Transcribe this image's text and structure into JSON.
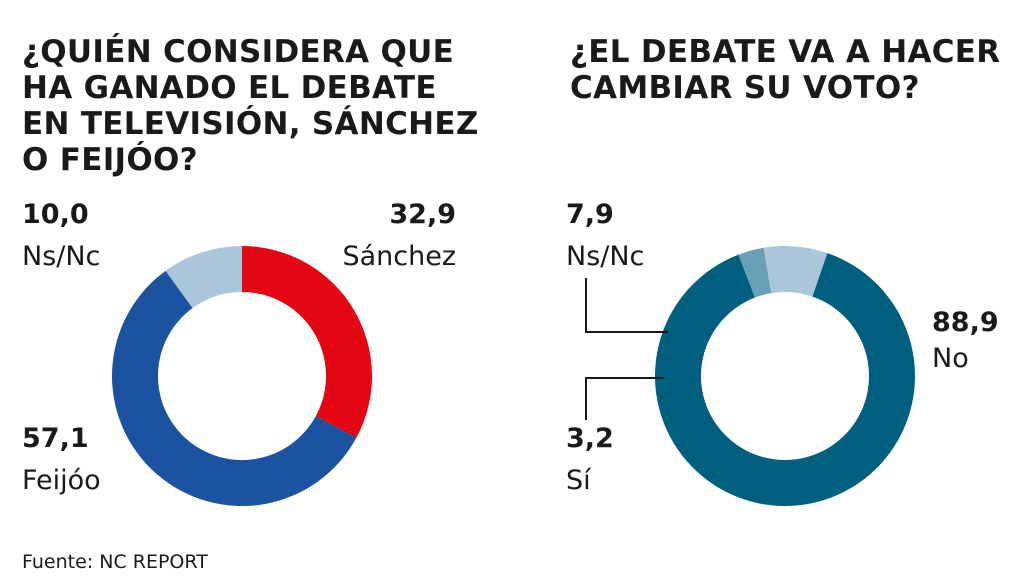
{
  "chart_data": [
    {
      "type": "pie",
      "title": "¿QUIÉN CONSIDERA QUE\nHA GANADO EL DEBATE\nEN TELEVISIÓN, SÁNCHEZ\nO FEIJÓO?",
      "slices": [
        {
          "label": "Sánchez",
          "value": 32.9,
          "value_text": "32,9",
          "color": "#e30613"
        },
        {
          "label": "Feijóo",
          "value": 57.1,
          "value_text": "57,1",
          "color": "#1c53a0"
        },
        {
          "label": "Ns/Nc",
          "value": 10.0,
          "value_text": "10,0",
          "color": "#a9c6da"
        }
      ],
      "donut": true
    },
    {
      "type": "pie",
      "title": "¿EL DEBATE VA A HACER\nCAMBIAR SU VOTO?",
      "slices": [
        {
          "label": "No",
          "value": 88.9,
          "value_text": "88,9",
          "color": "#005f7f"
        },
        {
          "label": "Sí",
          "value": 3.2,
          "value_text": "3,2",
          "color": "#6a9fb8"
        },
        {
          "label": "Ns/Nc",
          "value": 7.9,
          "value_text": "7,9",
          "color": "#a9c6da"
        }
      ],
      "donut": true
    }
  ],
  "source": "Fuente: NC REPORT"
}
